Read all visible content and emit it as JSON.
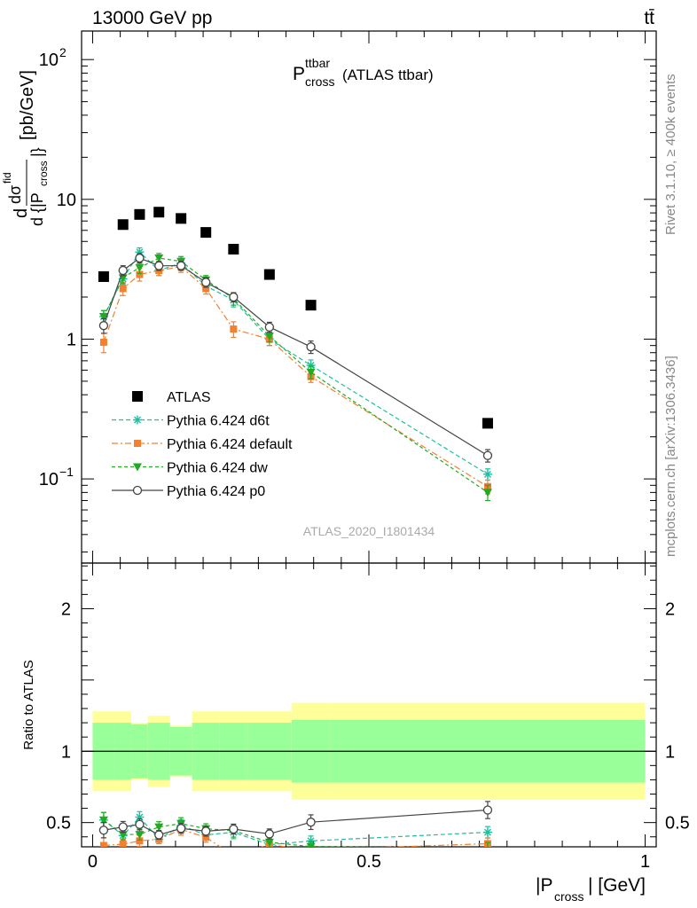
{
  "header": {
    "energy_label": "13000 GeV pp",
    "process_label": "tt̄",
    "plot_title_main": "P",
    "plot_title_sup": "ttbar",
    "plot_title_sub": "cross",
    "plot_title_suffix": " (ATLAS ttbar)",
    "analysis_id": "ATLAS_2020_I1801434",
    "side_note_rivet": "Rivet 3.1.10, ≥ 400k events",
    "side_note_mcplots": "mcplots.cern.ch [arXiv:1306.3436]"
  },
  "axes": {
    "ylabel_main": "[pb/GeV]",
    "ylabel_ratio": "Ratio to ATLAS",
    "xlabel": "|P_cross| [GeV]",
    "xlim": [
      -0.02,
      1.02
    ],
    "ylim_main_log": [
      0.025,
      160
    ],
    "ylim_ratio": [
      0.33,
      2.32
    ],
    "xticks": [
      {
        "v": 0,
        "label": "0"
      },
      {
        "v": 0.5,
        "label": "0.5"
      },
      {
        "v": 1,
        "label": "1"
      }
    ],
    "yticks_main": [
      {
        "v": 0.1,
        "base": "10",
        "exp": "−1"
      },
      {
        "v": 1,
        "base": "1",
        "exp": ""
      },
      {
        "v": 10,
        "base": "10",
        "exp": ""
      },
      {
        "v": 100,
        "base": "10",
        "exp": "2"
      }
    ],
    "yticks_ratio": [
      {
        "v": 0.5,
        "label": "0.5"
      },
      {
        "v": 1,
        "label": "1"
      },
      {
        "v": 2,
        "label": "2"
      }
    ]
  },
  "legend": [
    {
      "label": "ATLAS",
      "series": "ATLAS"
    },
    {
      "label": "Pythia 6.424 d6t",
      "series": "d6t"
    },
    {
      "label": "Pythia 6.424 default",
      "series": "default"
    },
    {
      "label": "Pythia 6.424 dw",
      "series": "dw"
    },
    {
      "label": "Pythia 6.424 p0",
      "series": "p0"
    }
  ],
  "colors": {
    "atlas": "#000000",
    "d6t": "#1cc0a0",
    "default": "#f28030",
    "dw": "#22aa22",
    "p0": "#444444",
    "band_inner": "#99ff99",
    "band_outer": "#ffff99"
  },
  "chart_data": {
    "type": "scatter",
    "y_scale": "log",
    "bins": [
      {
        "lo": 0.0,
        "hi": 0.04
      },
      {
        "lo": 0.04,
        "hi": 0.07
      },
      {
        "lo": 0.07,
        "hi": 0.1
      },
      {
        "lo": 0.1,
        "hi": 0.14
      },
      {
        "lo": 0.14,
        "hi": 0.18
      },
      {
        "lo": 0.18,
        "hi": 0.23
      },
      {
        "lo": 0.23,
        "hi": 0.28
      },
      {
        "lo": 0.28,
        "hi": 0.36
      },
      {
        "lo": 0.36,
        "hi": 0.43
      },
      {
        "lo": 0.43,
        "hi": 1.0
      }
    ],
    "x": [
      0.02,
      0.055,
      0.085,
      0.12,
      0.16,
      0.205,
      0.255,
      0.32,
      0.395,
      0.715
    ],
    "atlas": {
      "name": "ATLAS",
      "values": [
        2.8,
        6.6,
        7.8,
        8.1,
        7.3,
        5.8,
        4.4,
        2.9,
        1.75,
        0.25
      ]
    },
    "band_inner_half": [
      0.2,
      0.2,
      0.19,
      0.2,
      0.17,
      0.2,
      0.2,
      0.2,
      0.22,
      0.22
    ],
    "band_outer_half": [
      0.28,
      0.28,
      0.2,
      0.25,
      0.18,
      0.28,
      0.28,
      0.28,
      0.34,
      0.34
    ],
    "series": [
      {
        "key": "d6t",
        "name": "Pythia 6.424 d6t",
        "values": [
          1.45,
          2.7,
          4.2,
          3.1,
          3.5,
          2.4,
          1.9,
          1.0,
          0.65,
          0.108
        ],
        "errors": [
          0.15,
          0.25,
          0.3,
          0.25,
          0.3,
          0.2,
          0.2,
          0.1,
          0.06,
          0.01
        ]
      },
      {
        "key": "default",
        "name": "Pythia 6.424 default",
        "values": [
          0.95,
          2.3,
          2.9,
          3.1,
          3.3,
          2.3,
          1.18,
          1.0,
          0.54,
          0.088
        ],
        "errors": [
          0.15,
          0.25,
          0.3,
          0.25,
          0.3,
          0.2,
          0.15,
          0.1,
          0.05,
          0.01
        ]
      },
      {
        "key": "dw",
        "name": "Pythia 6.424 dw",
        "values": [
          1.45,
          2.75,
          3.25,
          3.8,
          3.6,
          2.65,
          1.95,
          1.05,
          0.58,
          0.08
        ],
        "errors": [
          0.15,
          0.25,
          0.3,
          0.3,
          0.3,
          0.2,
          0.2,
          0.1,
          0.06,
          0.01
        ]
      },
      {
        "key": "p0",
        "name": "Pythia 6.424 p0",
        "values": [
          1.25,
          3.1,
          3.8,
          3.35,
          3.35,
          2.55,
          2.0,
          1.22,
          0.88,
          0.147
        ],
        "errors": [
          0.15,
          0.25,
          0.3,
          0.25,
          0.25,
          0.2,
          0.15,
          0.1,
          0.09,
          0.015
        ]
      }
    ]
  }
}
